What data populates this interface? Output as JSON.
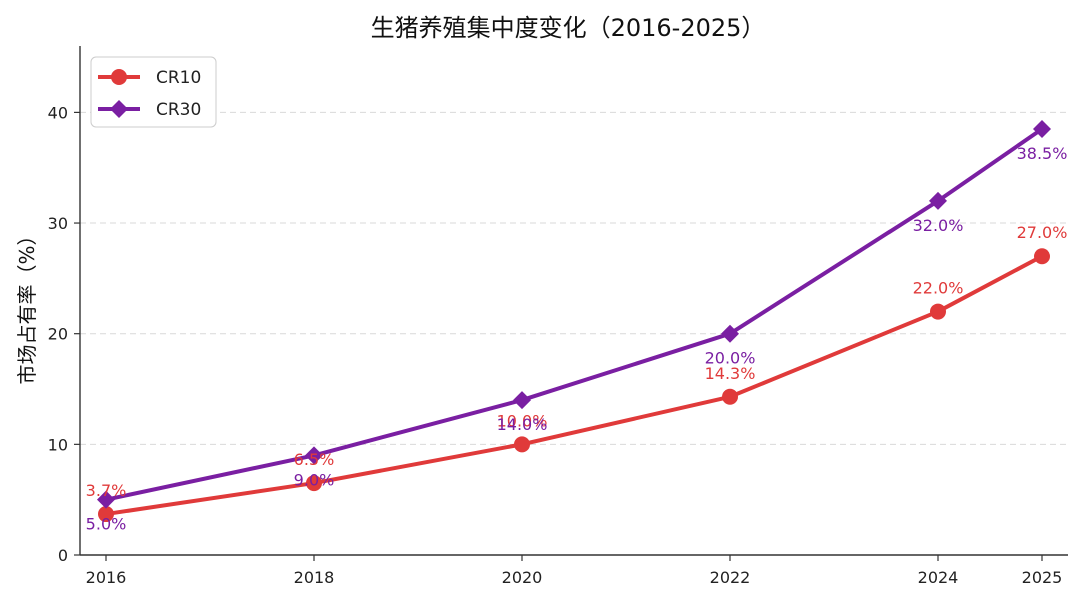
{
  "chart_data": {
    "type": "line",
    "title": "生猪养殖集中度变化（2016-2025）",
    "xlabel": "",
    "ylabel": "市场占有率（%）",
    "categories": [
      "2016",
      "2018",
      "2020",
      "2022",
      "2024",
      "2025"
    ],
    "x": [
      2016,
      2018,
      2020,
      2022,
      2024,
      2025
    ],
    "ylim": [
      0,
      46
    ],
    "yticks": [
      "0",
      "10",
      "20",
      "30",
      "40"
    ],
    "grid": "horizontal-dashed",
    "legend_position": "top-left",
    "series": [
      {
        "name": "CR10",
        "marker": "circle",
        "color": "#e03a3a",
        "values": [
          3.7,
          6.5,
          10.0,
          14.3,
          22.0,
          27.0
        ],
        "labels": [
          "3.7%",
          "6.5%",
          "10.0%",
          "14.3%",
          "22.0%",
          "27.0%"
        ]
      },
      {
        "name": "CR30",
        "marker": "diamond",
        "color": "#7a1fa2",
        "values": [
          5.0,
          9.0,
          14.0,
          20.0,
          32.0,
          38.5
        ],
        "labels": [
          "5.0%",
          "9.0%",
          "14.0%",
          "20.0%",
          "32.0%",
          "38.5%"
        ]
      }
    ]
  }
}
